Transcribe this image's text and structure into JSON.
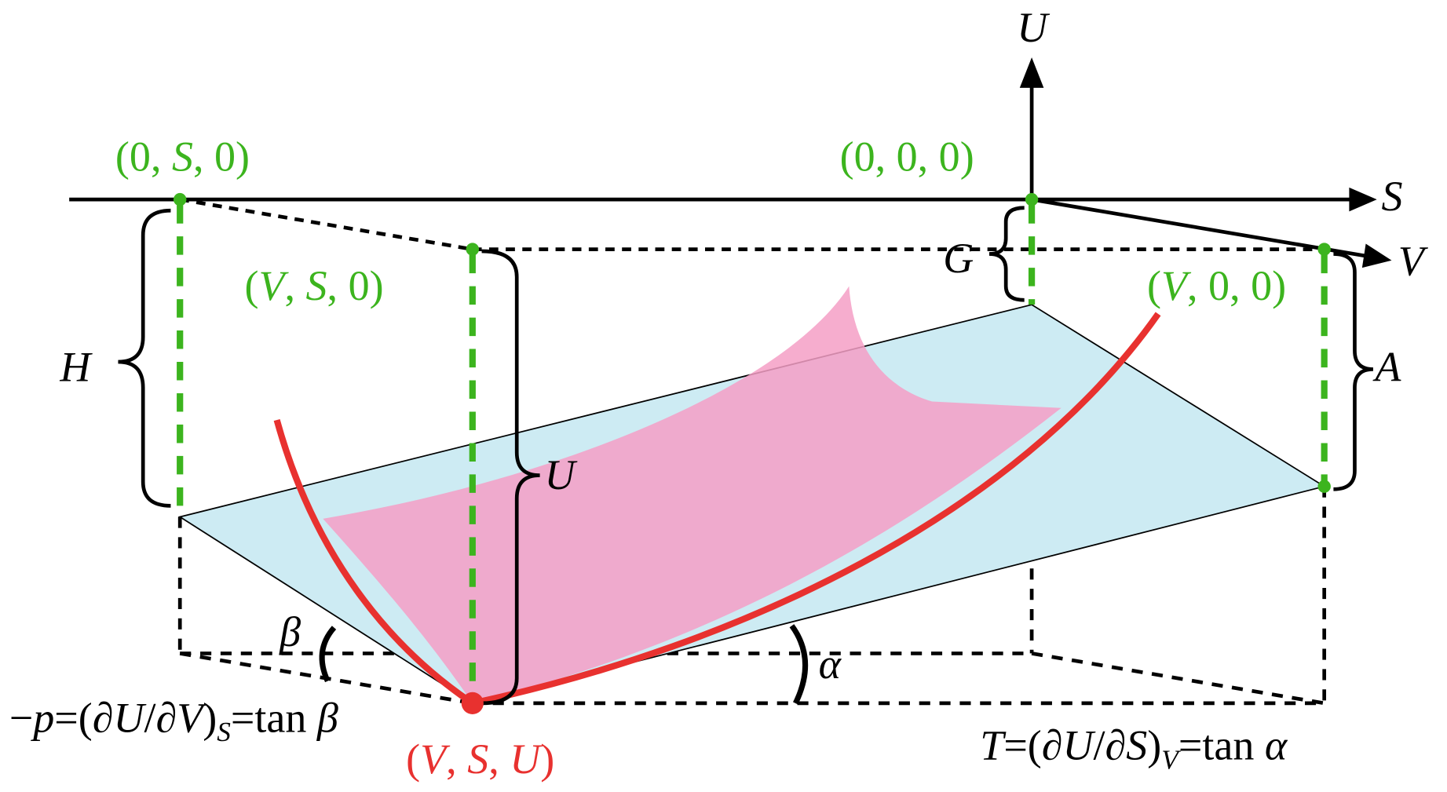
{
  "axes": {
    "u": "U",
    "s": "S",
    "v": "V"
  },
  "points": {
    "origin": [
      "(0, 0, 0)"
    ],
    "zero_s": [
      "(0, ",
      "S",
      ", 0)"
    ],
    "v_s": [
      "(",
      "V",
      ", ",
      "S",
      ", 0)"
    ],
    "v_zero": [
      "(",
      "V",
      ", 0, 0)"
    ],
    "state": [
      "(",
      "V",
      ", ",
      "S",
      ", ",
      "U",
      ")"
    ]
  },
  "braces": {
    "h": "H",
    "u": "U",
    "g": "G",
    "a": "A"
  },
  "angles": {
    "beta": "β",
    "alpha": "α"
  },
  "formulas": {
    "pressure": [
      "−",
      "p",
      "=(∂",
      "U",
      "/∂",
      "V",
      ")",
      "S",
      "=tan ",
      "β"
    ],
    "temperature": [
      "T",
      "=(∂",
      "U",
      "/∂",
      "S",
      ")",
      "V",
      "=tan ",
      "α"
    ]
  }
}
